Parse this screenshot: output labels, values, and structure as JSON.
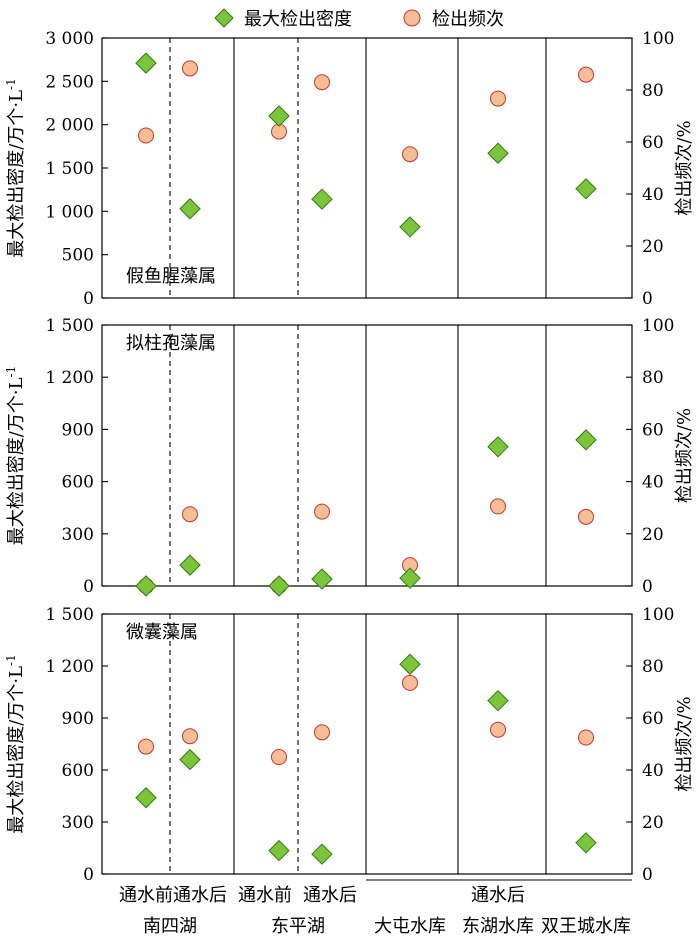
{
  "legend": {
    "density": "最大检出密度",
    "frequency": "检出频次"
  },
  "colors": {
    "diamond_fill": "#7cc53b",
    "diamond_stroke": "#2e7d0f",
    "circle_fill": "#f6bd97",
    "circle_stroke": "#c0392b"
  },
  "y_left_label": "最大检出密度/万个·L",
  "y_left_label_sup": "-1",
  "y_right_label": "检出频次/%",
  "categories": [
    "通水前",
    "通水后",
    "通水前",
    "通水后",
    "大屯水库",
    "东湖水库",
    "双王城水库"
  ],
  "groups": [
    {
      "label": "南四湖",
      "from": 0,
      "to": 1
    },
    {
      "label": "东平湖",
      "from": 2,
      "to": 3
    },
    {
      "label": "通水后",
      "from": 4,
      "to": 6
    }
  ],
  "chart_data": [
    {
      "type": "scatter",
      "title": "假鱼腥藻属",
      "categories": [
        "通水前",
        "通水后",
        "通水前",
        "通水后",
        "大屯水库",
        "东湖水库",
        "双王城水库"
      ],
      "series": [
        {
          "name": "最大检出密度",
          "axis": "left",
          "values": [
            2710,
            1030,
            2100,
            1140,
            820,
            1670,
            1260
          ]
        },
        {
          "name": "检出频次",
          "axis": "right",
          "values": [
            62.5,
            88.3,
            64,
            83,
            55.3,
            76.7,
            85.9
          ]
        }
      ],
      "ylim_left": [
        0,
        3000
      ],
      "yticks_left": [
        "0",
        "500",
        "1 000",
        "1 500",
        "2 000",
        "2 500",
        "3 000"
      ],
      "ylim_right": [
        0,
        100
      ],
      "yticks_right": [
        "0",
        "20",
        "40",
        "60",
        "80",
        "100"
      ]
    },
    {
      "type": "scatter",
      "title": "拟柱孢藻属",
      "categories": [
        "通水前",
        "通水后",
        "通水前",
        "通水后",
        "大屯水库",
        "东湖水库",
        "双王城水库"
      ],
      "series": [
        {
          "name": "最大检出密度",
          "axis": "left",
          "values": [
            0,
            120,
            0,
            40,
            45,
            800,
            840
          ]
        },
        {
          "name": "检出频次",
          "axis": "right",
          "values": [
            0,
            27.5,
            0,
            28.5,
            8,
            30.5,
            26.5
          ]
        }
      ],
      "ylim_left": [
        0,
        1500
      ],
      "yticks_left": [
        "0",
        "300",
        "600",
        "900",
        "1 200",
        "1 500"
      ],
      "ylim_right": [
        0,
        100
      ],
      "yticks_right": [
        "0",
        "20",
        "40",
        "60",
        "80",
        "100"
      ]
    },
    {
      "type": "scatter",
      "title": "微囊藻属",
      "categories": [
        "通水前",
        "通水后",
        "通水前",
        "通水后",
        "大屯水库",
        "东湖水库",
        "双王城水库"
      ],
      "series": [
        {
          "name": "最大检出密度",
          "axis": "left",
          "values": [
            440,
            660,
            135,
            115,
            1210,
            1000,
            180
          ]
        },
        {
          "name": "检出频次",
          "axis": "right",
          "values": [
            49,
            53,
            45,
            54.5,
            73.5,
            55.5,
            52.5
          ]
        }
      ],
      "ylim_left": [
        0,
        1500
      ],
      "yticks_left": [
        "0",
        "300",
        "600",
        "900",
        "1 200",
        "1 500"
      ],
      "ylim_right": [
        0,
        100
      ],
      "yticks_right": [
        "0",
        "20",
        "40",
        "60",
        "80",
        "100"
      ]
    }
  ]
}
